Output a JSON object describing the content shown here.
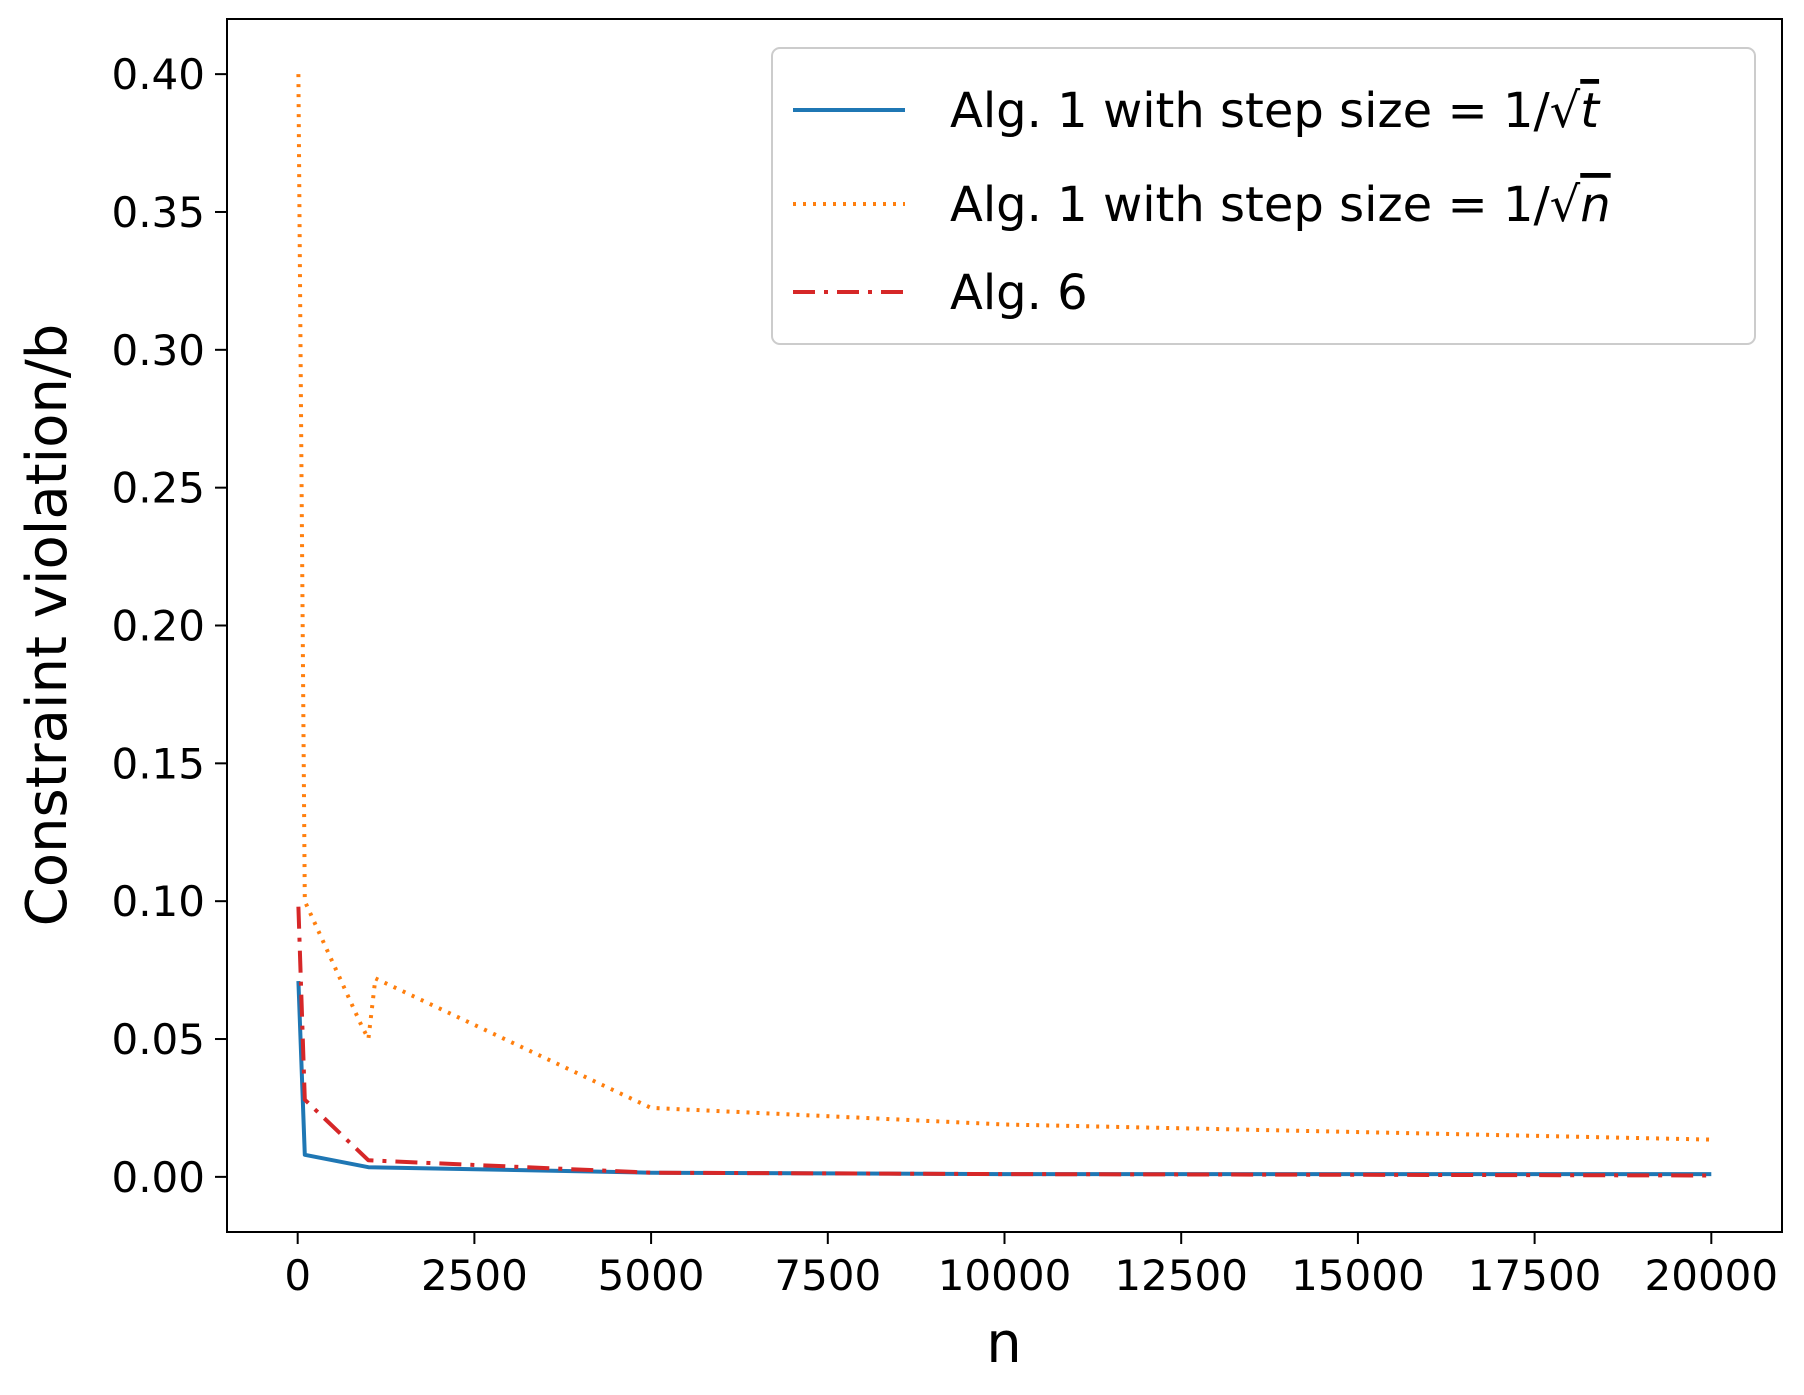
{
  "chart_data": {
    "type": "line",
    "xlabel": "n",
    "ylabel": "Constraint violation/b",
    "xlim": [
      -1000,
      21000
    ],
    "ylim": [
      -0.02,
      0.42
    ],
    "x_ticks": [
      0,
      2500,
      5000,
      7500,
      10000,
      12500,
      15000,
      17500,
      20000
    ],
    "x_tick_labels": [
      "0",
      "2500",
      "5000",
      "7500",
      "10000",
      "12500",
      "15000",
      "17500",
      "20000"
    ],
    "y_ticks": [
      0.0,
      0.05,
      0.1,
      0.15,
      0.2,
      0.25,
      0.3,
      0.35,
      0.4
    ],
    "y_tick_labels": [
      "0.00",
      "0.05",
      "0.10",
      "0.15",
      "0.20",
      "0.25",
      "0.30",
      "0.35",
      "0.40"
    ],
    "grid": false,
    "legend_position": "top-right",
    "series": [
      {
        "name": "Alg. 1 with step size = 1/√t",
        "legend_prefix": "Alg. 1 with step size = 1/",
        "legend_radicand": "t",
        "color": "#1f77b4",
        "style": "solid",
        "x": [
          10,
          100,
          1000,
          5000,
          10000,
          20000
        ],
        "y": [
          0.071,
          0.008,
          0.0035,
          0.0015,
          0.001,
          0.001
        ]
      },
      {
        "name": "Alg. 1 with step size = 1/√n",
        "legend_prefix": "Alg. 1 with step size = 1/",
        "legend_radicand": "n",
        "color": "#ff7f0e",
        "style": "dotted",
        "x": [
          10,
          100,
          900,
          1000,
          1100,
          5000,
          10000,
          20000
        ],
        "y": [
          0.4,
          0.1,
          0.055,
          0.05,
          0.072,
          0.025,
          0.019,
          0.0135
        ]
      },
      {
        "name": "Alg. 6",
        "legend_prefix": "Alg. 6",
        "legend_radicand": "",
        "color": "#d62728",
        "style": "dashdot",
        "x": [
          10,
          100,
          1000,
          5000,
          10000,
          20000
        ],
        "y": [
          0.098,
          0.028,
          0.006,
          0.0015,
          0.001,
          0.0005
        ]
      }
    ]
  }
}
